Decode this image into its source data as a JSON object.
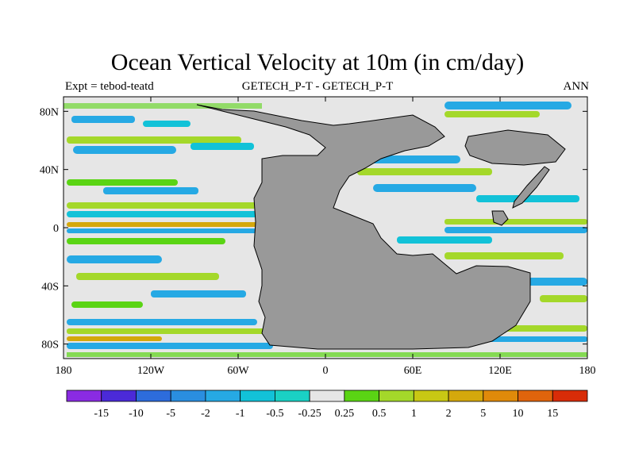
{
  "title": "Ocean Vertical Velocity at 10m (in cm/day)",
  "subtitle_left": "Expt = tebod-teatd",
  "subtitle_center": "GETECH_P-T - GETECH_P-T",
  "subtitle_right": "ANN",
  "lat_labels": [
    "80N",
    "40N",
    "0",
    "40S",
    "80S"
  ],
  "lon_labels": [
    "180",
    "120W",
    "60W",
    "0",
    "60E",
    "120E",
    "180"
  ],
  "colorbar": {
    "labels": [
      "-15",
      "-10",
      "-5",
      "-2",
      "-1",
      "-0.5",
      "-0.25",
      "0.25",
      "0.5",
      "1",
      "2",
      "5",
      "10",
      "15"
    ],
    "colors": [
      "#8a2be2",
      "#4b2ad8",
      "#2d6cdc",
      "#2a8ee0",
      "#26a9e4",
      "#12c2d8",
      "#1ad1c4",
      "#e6e6e6",
      "#5ad414",
      "#a4d82a",
      "#c8c814",
      "#d4a80c",
      "#e08a0a",
      "#e0640c",
      "#d82c08"
    ]
  },
  "colors": {
    "land": "#999999",
    "neutral": "#e6e6e6"
  }
}
